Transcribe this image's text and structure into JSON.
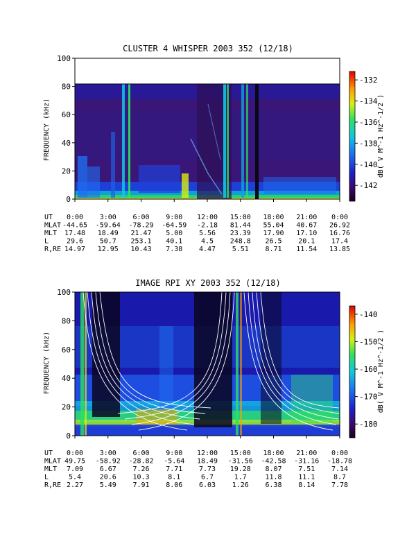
{
  "chart_data": [
    {
      "type": "heatmap",
      "title": "CLUSTER 4 WHISPER 2003 352 (12/18)",
      "ylabel": "FREQUENCY (kHz)",
      "ylim": [
        0,
        100
      ],
      "y_ticks": [
        "0",
        "20",
        "40",
        "60",
        "80",
        "100"
      ],
      "data_ymax": 80,
      "colorbar": {
        "label": "dB( V M^-1 Hz^-1/2 )",
        "range": [
          -143.5,
          -131.2
        ],
        "ticks": [
          "-132",
          "-134",
          "-136",
          "-138",
          "-140",
          "-142"
        ]
      },
      "x_ticks": [
        "0:00",
        "3:00",
        "6:00",
        "9:00",
        "12:00",
        "15:00",
        "18:00",
        "21:00",
        "0:00"
      ],
      "ephemeris": [
        {
          "label": "UT",
          "values": [
            "0:00",
            "3:00",
            "6:00",
            "9:00",
            "12:00",
            "15:00",
            "18:00",
            "21:00",
            "0:00"
          ]
        },
        {
          "label": "MLAT",
          "values": [
            "-44.65",
            "-59.64",
            "-78.29",
            "-64.59",
            "-2.18",
            "81.44",
            "55.04",
            "40.67",
            "26.92"
          ]
        },
        {
          "label": "MLT",
          "values": [
            "17.48",
            "18.49",
            "21.47",
            "5.00",
            "5.56",
            "23.39",
            "17.90",
            "17.10",
            "16.76"
          ]
        },
        {
          "label": "L",
          "values": [
            "29.6",
            "50.7",
            "253.1",
            "40.1",
            "4.5",
            "248.8",
            "26.5",
            "20.1",
            "17.4"
          ]
        },
        {
          "label": "R,RE",
          "values": [
            "14.97",
            "12.95",
            "10.43",
            "7.38",
            "4.47",
            "5.51",
            "8.71",
            "11.54",
            "13.85"
          ]
        }
      ]
    },
    {
      "type": "heatmap",
      "title": "IMAGE RPI XY 2003 352 (12/18)",
      "ylabel": "FREQUENCY (kHz)",
      "ylim": [
        0,
        100
      ],
      "y_ticks": [
        "0",
        "20",
        "40",
        "60",
        "80",
        "100"
      ],
      "data_ymax": 100,
      "colorbar": {
        "label": "dB( V M^-1 Hz^-1/2 )",
        "range": [
          -185,
          -137
        ],
        "ticks": [
          "-140",
          "-150",
          "-160",
          "-170",
          "-180"
        ]
      },
      "x_ticks": [
        "0:00",
        "3:00",
        "6:00",
        "9:00",
        "12:00",
        "15:00",
        "18:00",
        "21:00",
        "0:00"
      ],
      "ephemeris": [
        {
          "label": "UT",
          "values": [
            "0:00",
            "3:00",
            "6:00",
            "9:00",
            "12:00",
            "15:00",
            "18:00",
            "21:00",
            "0:00"
          ]
        },
        {
          "label": "MLAT",
          "values": [
            "49.75",
            "-58.92",
            "-28.82",
            "-5.64",
            "18.49",
            "-31.56",
            "-42.58",
            "-31.16",
            "-18.78"
          ]
        },
        {
          "label": "MLT",
          "values": [
            "7.09",
            "6.67",
            "7.26",
            "7.71",
            "7.73",
            "19.28",
            "8.07",
            "7.51",
            "7.14"
          ]
        },
        {
          "label": "L",
          "values": [
            "5.4",
            "20.6",
            "10.3",
            "8.1",
            "6.7",
            "1.7",
            "11.8",
            "11.1",
            "8.7"
          ]
        },
        {
          "label": "R,RE",
          "values": [
            "2.27",
            "5.49",
            "7.91",
            "8.06",
            "6.03",
            "1.26",
            "6.38",
            "8.14",
            "7.78"
          ]
        }
      ]
    }
  ]
}
